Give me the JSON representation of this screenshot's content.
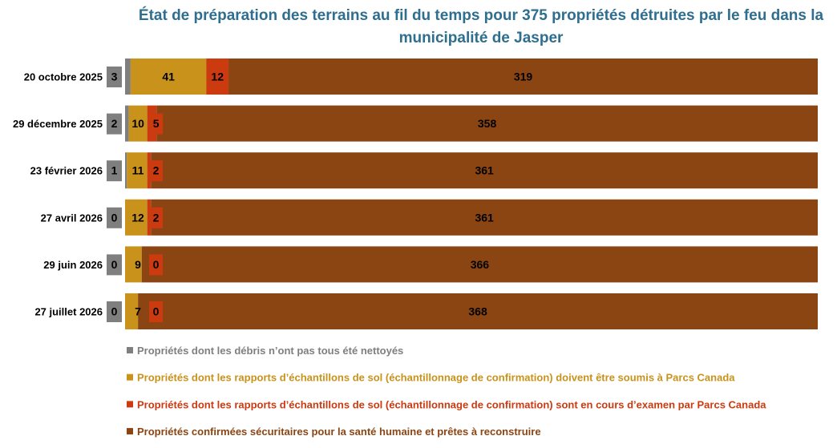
{
  "chart_data": {
    "type": "bar",
    "orientation": "horizontal",
    "stacked": true,
    "title": "État de préparation des terrains au fil du temps pour 375 propriétés détruites par le feu dans la municipalité de Jasper",
    "categories": [
      "20 octobre 2025",
      "29 décembre 2025",
      "23 février 2026",
      "27 avril 2026",
      "29 juin 2026",
      "27 juillet 2026"
    ],
    "series": [
      {
        "name": "Propriétés dont les débris n’ont pas tous été nettoyés",
        "color": "#7F7F7F",
        "values": [
          3,
          2,
          1,
          0,
          0,
          0
        ]
      },
      {
        "name": "Propriétés dont les rapports d’échantillons de sol (échantillonnage de confirmation) doivent être soumis à Parcs Canada",
        "color": "#C9921A",
        "values": [
          41,
          10,
          11,
          12,
          9,
          7
        ]
      },
      {
        "name": "Propriétés dont les rapports d’échantillons de sol (échantillonnage de confirmation) sont en cours d’examen par Parcs Canada",
        "color": "#CC3A10",
        "values": [
          12,
          5,
          2,
          2,
          0,
          0
        ]
      },
      {
        "name": "Propriétés confirmées sécuritaires pour la santé humaine et prêtes à reconstruire",
        "color": "#8B4513",
        "values": [
          319,
          358,
          361,
          361,
          366,
          368
        ]
      }
    ],
    "total": 375,
    "legend_position": "bottom",
    "grid": false
  }
}
